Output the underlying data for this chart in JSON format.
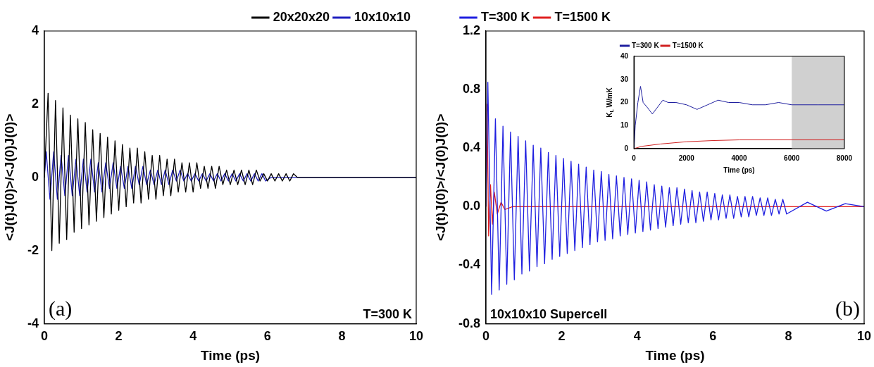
{
  "chart_data": [
    {
      "type": "line",
      "xlabel": "Time (ps)",
      "ylabel": "<J(t)J(0)>/<J(0)J(0)>",
      "xlim": [
        0,
        10
      ],
      "xticks": [
        0,
        2,
        4,
        6,
        8,
        10
      ],
      "ylim": [
        -4,
        4
      ],
      "yticks": [
        -4,
        -2,
        0,
        2,
        4
      ],
      "legend": "top right",
      "marker": "none",
      "grid": false,
      "annotations": [
        "(a)",
        "T=300 K"
      ],
      "series": [
        {
          "name": "20x20x20",
          "color": "#000000",
          "x": [
            0,
            0.1,
            0.2,
            0.3,
            0.4,
            0.5,
            0.6,
            0.7,
            0.8,
            0.9,
            1.0,
            1.1,
            1.2,
            1.3,
            1.4,
            1.5,
            1.6,
            1.7,
            1.8,
            1.9,
            2.0,
            2.1,
            2.2,
            2.3,
            2.4,
            2.5,
            2.6,
            2.7,
            2.8,
            2.9,
            3.0,
            3.1,
            3.2,
            3.3,
            3.4,
            3.5,
            3.6,
            3.7,
            3.8,
            3.9,
            4.0,
            4.1,
            4.2,
            4.3,
            4.4,
            4.5,
            4.6,
            4.7,
            4.8,
            4.9,
            5.0,
            5.1,
            5.2,
            5.3,
            5.4,
            5.5,
            5.6,
            5.7,
            5.8,
            5.9,
            6.0,
            6.1,
            6.2,
            6.3,
            6.4,
            6.5,
            6.6,
            6.7,
            6.8,
            10
          ],
          "values": [
            0,
            2.3,
            -2.0,
            2.1,
            -1.8,
            1.9,
            -1.7,
            1.7,
            -1.5,
            1.6,
            -1.4,
            1.5,
            -1.3,
            1.3,
            -1.2,
            1.2,
            -1.1,
            1.1,
            -1.0,
            1.0,
            -0.9,
            0.9,
            -0.8,
            0.8,
            -0.7,
            0.8,
            -0.7,
            0.7,
            -0.6,
            0.6,
            -0.6,
            0.6,
            -0.5,
            0.5,
            -0.5,
            0.5,
            -0.4,
            0.4,
            -0.4,
            0.4,
            -0.4,
            0.4,
            -0.3,
            0.3,
            -0.3,
            0.3,
            -0.3,
            0.3,
            -0.2,
            0.2,
            -0.2,
            0.2,
            -0.2,
            0.2,
            -0.2,
            0.2,
            -0.2,
            0.2,
            -0.1,
            0.1,
            -0.1,
            0.1,
            -0.1,
            0.1,
            -0.1,
            0.1,
            -0.1,
            0.1,
            0,
            0
          ]
        },
        {
          "name": "10x10x10",
          "color": "#1f1fbf",
          "x": [
            0,
            0.05,
            0.15,
            0.25,
            0.35,
            0.45,
            0.55,
            0.65,
            0.75,
            0.85,
            0.95,
            1.05,
            1.15,
            1.25,
            1.35,
            1.45,
            1.55,
            1.65,
            1.75,
            1.85,
            1.95,
            2.05,
            2.15,
            2.25,
            2.35,
            2.45,
            2.55,
            2.65,
            2.75,
            2.85,
            2.95,
            3.05,
            3.15,
            3.25,
            3.35,
            3.45,
            3.55,
            3.65,
            3.75,
            3.85,
            3.95,
            4.05,
            4.15,
            4.25,
            4.35,
            4.45,
            4.55,
            4.65,
            4.75,
            4.85,
            4.95,
            5.05,
            5.15,
            5.25,
            5.35,
            5.45,
            5.55,
            5.65,
            5.75,
            5.85,
            5.95,
            6.1,
            10
          ],
          "values": [
            0,
            0.7,
            -0.6,
            0.7,
            -0.6,
            0.6,
            -0.5,
            0.6,
            -0.5,
            0.5,
            -0.5,
            0.5,
            -0.4,
            0.5,
            -0.4,
            0.4,
            -0.4,
            0.4,
            -0.3,
            0.4,
            -0.3,
            0.3,
            -0.3,
            0.3,
            -0.3,
            0.3,
            -0.2,
            0.3,
            -0.2,
            0.2,
            -0.2,
            0.2,
            -0.2,
            0.2,
            -0.2,
            0.2,
            -0.1,
            0.2,
            -0.1,
            0.1,
            -0.1,
            0.1,
            -0.1,
            0.1,
            -0.1,
            0.1,
            -0.1,
            0.1,
            -0.1,
            0.1,
            -0.1,
            0.1,
            -0.1,
            0.1,
            -0.1,
            0.1,
            -0.1,
            0.1,
            -0.1,
            0.1,
            -0.1,
            0,
            0
          ]
        }
      ]
    },
    {
      "type": "line",
      "xlabel": "Time (ps)",
      "ylabel": "<J(t)J(0)>/<J(0)J(0)>",
      "xlim": [
        0,
        10
      ],
      "xticks": [
        0,
        2,
        4,
        6,
        8,
        10
      ],
      "ylim": [
        -0.8,
        1.2
      ],
      "yticks": [
        {
          "value": -0.8,
          "label": "-0.8"
        },
        {
          "value": -0.4,
          "label": "-0.4"
        },
        {
          "value": 0,
          "label": "0.0"
        },
        {
          "value": 0.4,
          "label": "0.4"
        },
        {
          "value": 0.8,
          "label": "0.8"
        },
        {
          "value": 1.2,
          "label": "1.2"
        }
      ],
      "legend": "top left",
      "marker": "none",
      "grid": false,
      "annotations": [
        "10x10x10 Supercell",
        "(b)"
      ],
      "series": [
        {
          "name": "T=300 K",
          "color": "#1f1fe0",
          "x": [
            0,
            0.05,
            0.15,
            0.25,
            0.35,
            0.45,
            0.55,
            0.65,
            0.75,
            0.85,
            0.95,
            1.05,
            1.15,
            1.25,
            1.35,
            1.45,
            1.55,
            1.65,
            1.75,
            1.85,
            1.95,
            2.05,
            2.15,
            2.25,
            2.35,
            2.45,
            2.55,
            2.65,
            2.75,
            2.85,
            2.95,
            3.05,
            3.15,
            3.25,
            3.35,
            3.45,
            3.55,
            3.65,
            3.75,
            3.85,
            3.95,
            4.05,
            4.15,
            4.25,
            4.35,
            4.45,
            4.55,
            4.65,
            4.75,
            4.85,
            4.95,
            5.05,
            5.15,
            5.25,
            5.35,
            5.45,
            5.55,
            5.65,
            5.75,
            5.85,
            5.95,
            6.05,
            6.15,
            6.25,
            6.35,
            6.45,
            6.55,
            6.65,
            6.75,
            6.85,
            6.95,
            7.05,
            7.15,
            7.25,
            7.35,
            7.45,
            7.55,
            7.65,
            7.75,
            7.85,
            7.95,
            8.5,
            9,
            9.5,
            10
          ],
          "values": [
            0,
            0.85,
            -0.6,
            0.6,
            -0.57,
            0.55,
            -0.53,
            0.51,
            -0.5,
            0.48,
            -0.46,
            0.45,
            -0.44,
            0.42,
            -0.41,
            0.4,
            -0.39,
            0.37,
            -0.36,
            0.35,
            -0.34,
            0.33,
            -0.32,
            0.31,
            -0.3,
            0.29,
            -0.28,
            0.27,
            -0.26,
            0.25,
            -0.24,
            0.24,
            -0.23,
            0.22,
            -0.22,
            0.21,
            -0.2,
            0.2,
            -0.19,
            0.19,
            -0.18,
            0.18,
            -0.17,
            0.17,
            -0.16,
            0.15,
            -0.15,
            0.14,
            -0.14,
            0.13,
            -0.13,
            0.13,
            -0.12,
            0.12,
            -0.11,
            0.11,
            -0.11,
            0.1,
            -0.1,
            0.1,
            -0.09,
            0.09,
            -0.09,
            0.08,
            -0.08,
            0.08,
            -0.08,
            0.07,
            -0.07,
            0.07,
            -0.07,
            0.07,
            -0.06,
            0.06,
            -0.06,
            0.06,
            -0.06,
            0.05,
            -0.05,
            0.05,
            -0.05,
            0.03,
            -0.03,
            0.02,
            0
          ]
        },
        {
          "name": "T=1500 K",
          "color": "#e02020",
          "x": [
            0,
            0.03,
            0.07,
            0.12,
            0.17,
            0.22,
            0.3,
            0.4,
            0.5,
            0.7,
            10
          ],
          "values": [
            0,
            0.7,
            -0.2,
            0.15,
            -0.12,
            0.1,
            -0.05,
            0.03,
            -0.02,
            0,
            0
          ]
        }
      ]
    },
    {
      "type": "line",
      "xlabel": "Time (ps)",
      "ylabel": "K$_{L}$ W/mK",
      "xlim": [
        0,
        8000
      ],
      "xticks": [
        0,
        2000,
        4000,
        6000,
        8000
      ],
      "ylim": [
        0,
        40
      ],
      "yticks": [
        0,
        10,
        20,
        30,
        40
      ],
      "legend": "top left",
      "marker": "none",
      "grid": false,
      "bands": [
        {
          "axis": "x",
          "from": 6000,
          "to": 8000,
          "color": "#d0d0d0"
        }
      ],
      "series": [
        {
          "name": "T=300 K",
          "color": "#1f1f9f",
          "x": [
            0,
            50,
            150,
            250,
            350,
            500,
            700,
            900,
            1100,
            1300,
            1600,
            2000,
            2400,
            2800,
            3200,
            3600,
            4000,
            4500,
            5000,
            5500,
            6000,
            7000,
            8000
          ],
          "values": [
            0,
            10,
            20,
            27,
            20,
            18,
            15,
            18,
            21,
            20,
            20,
            19,
            17,
            19,
            21,
            20,
            20,
            19,
            19,
            20,
            19,
            19,
            19
          ]
        },
        {
          "name": "T=1500 K",
          "color": "#d02020",
          "x": [
            0,
            300,
            1000,
            2000,
            3000,
            4000,
            8000
          ],
          "values": [
            0,
            1,
            2,
            3,
            3.5,
            3.8,
            3.8
          ]
        }
      ]
    }
  ]
}
